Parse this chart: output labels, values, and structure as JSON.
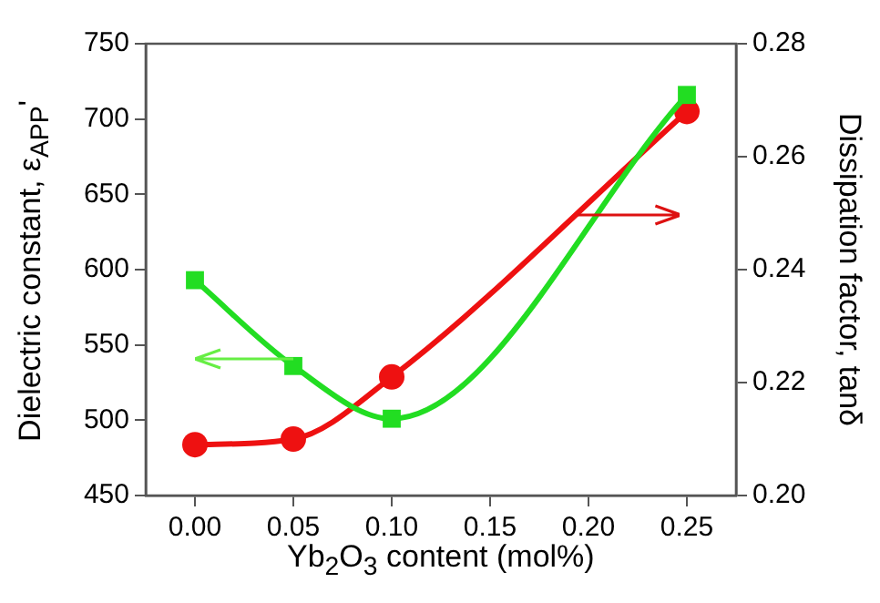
{
  "chart_data": {
    "type": "line",
    "xlabel": "Yb$_{2}$O$_{3}$ content (mol%)",
    "ylabel": "Dielectric constant, ε$_{APP}$'",
    "y2label": "Dissipation factor, tanδ",
    "x": [
      0,
      0.05,
      0.1,
      0.25
    ],
    "series": [
      {
        "color": "#22dd22",
        "marker": "square",
        "values": [
          593,
          536,
          501,
          716
        ]
      },
      {
        "color": "#ee1111",
        "marker": "circle",
        "axis": "y2",
        "values": [
          0.209,
          0.21,
          0.221,
          0.268
        ]
      }
    ],
    "xlim": [
      -0.025,
      0.275
    ],
    "xticks": [
      {
        "value": 0,
        "label": "0.00"
      },
      {
        "value": 0.05,
        "label": "0.05"
      },
      {
        "value": 0.1,
        "label": "0.10"
      },
      {
        "value": 0.15,
        "label": "0.15"
      },
      {
        "value": 0.2,
        "label": "0.20"
      },
      {
        "value": 0.25,
        "label": "0.25"
      }
    ],
    "ylim": [
      450,
      750
    ],
    "yticks": [
      450,
      500,
      550,
      600,
      650,
      700,
      750
    ],
    "y2lim": [
      0.2,
      0.28
    ],
    "y2ticks": [
      {
        "value": 0.2,
        "label": "0.20"
      },
      {
        "value": 0.22,
        "label": "0.22"
      },
      {
        "value": 0.24,
        "label": "0.24"
      },
      {
        "value": 0.26,
        "label": "0.26"
      },
      {
        "value": 0.28,
        "label": "0.28"
      }
    ],
    "grid": false,
    "legend": false
  }
}
